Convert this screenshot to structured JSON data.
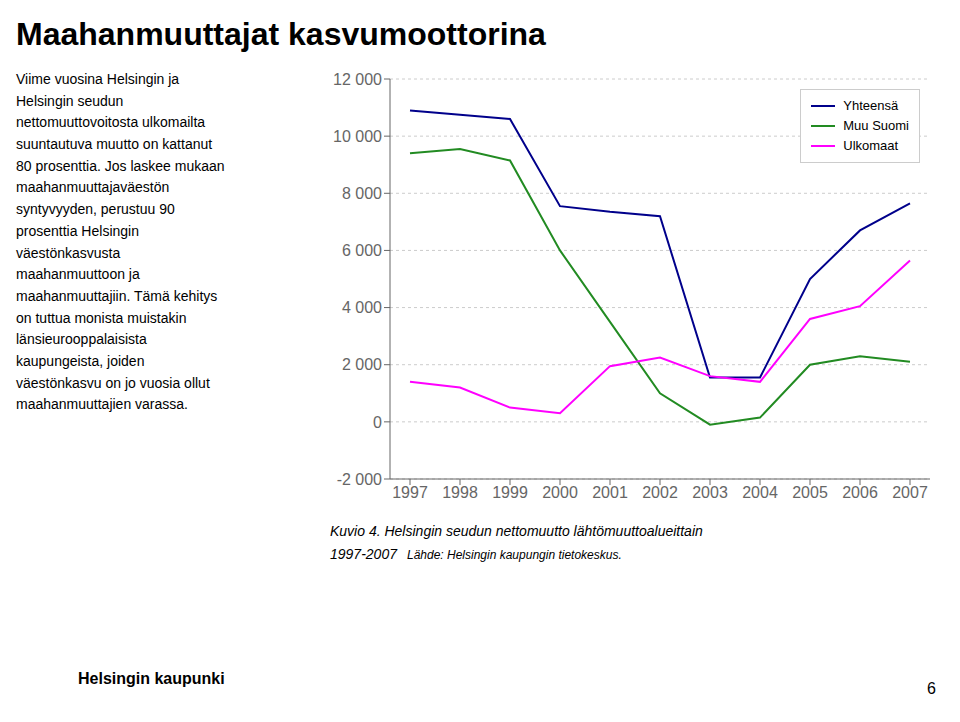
{
  "chart_data": {
    "type": "line",
    "title": "Maahanmuuttajat kasvumoottorina",
    "x": [
      1997,
      1998,
      1999,
      2000,
      2001,
      2002,
      2003,
      2004,
      2005,
      2006,
      2007
    ],
    "series": [
      {
        "name": "Yhteensä",
        "color": "#00008B",
        "values": [
          10900,
          10750,
          10600,
          7550,
          7350,
          7200,
          1550,
          1550,
          5000,
          6700,
          7650
        ]
      },
      {
        "name": "Muu Suomi",
        "color": "#228B22",
        "values": [
          9400,
          9550,
          9150,
          6000,
          3500,
          1000,
          -100,
          150,
          2000,
          2300,
          2100
        ]
      },
      {
        "name": "Ulkomaat",
        "color": "#FF00FF",
        "values": [
          1400,
          1200,
          500,
          300,
          1950,
          2250,
          1600,
          1400,
          3600,
          4050,
          5650
        ]
      }
    ],
    "xlim": [
      1996.6,
      2007.4
    ],
    "xticks": [
      1997,
      1998,
      1999,
      2000,
      2001,
      2002,
      2003,
      2004,
      2005,
      2006,
      2007
    ],
    "ylim": [
      -2000,
      12000
    ],
    "yticks": [
      {
        "value": -2000,
        "label": "-2 000"
      },
      0,
      {
        "value": 2000,
        "label": "2 000"
      },
      {
        "value": 4000,
        "label": "4 000"
      },
      {
        "value": 6000,
        "label": "6 000"
      },
      {
        "value": 8000,
        "label": "8 000"
      },
      {
        "value": 10000,
        "label": "10 000"
      },
      {
        "value": 12000,
        "label": "12 000"
      }
    ],
    "grid": "y",
    "legend": "upper right",
    "annotations": [
      "Viime vuosina Helsingin ja\nHelsingin seudun\nnettomuuttovoitosta ulkomailta\nsuuntautuva muutto on kattanut\n80 prosenttia. Jos laskee mukaan\nmaahanmuuttajaväestön\nsyntyvyyden, perustuu 90\nprosenttia Helsingin\nväestönkasvusta\nmaahanmuuttoon ja\nmaahanmuuttajiin. Tämä kehitys\non tuttua monista muistakin\nlänsieurooppalaisista\nkaupungeista, joiden\nväestönkasvu on jo vuosia ollut\nmaahanmuuttajien varassa.",
      "Kuvio 4. Helsingin seudun nettomuutto lähtömuuttoalueittain",
      "1997-2007",
      "Lähde: Helsingin kaupungin tietokeskus.",
      "Helsingin kaupunki",
      "6"
    ]
  }
}
